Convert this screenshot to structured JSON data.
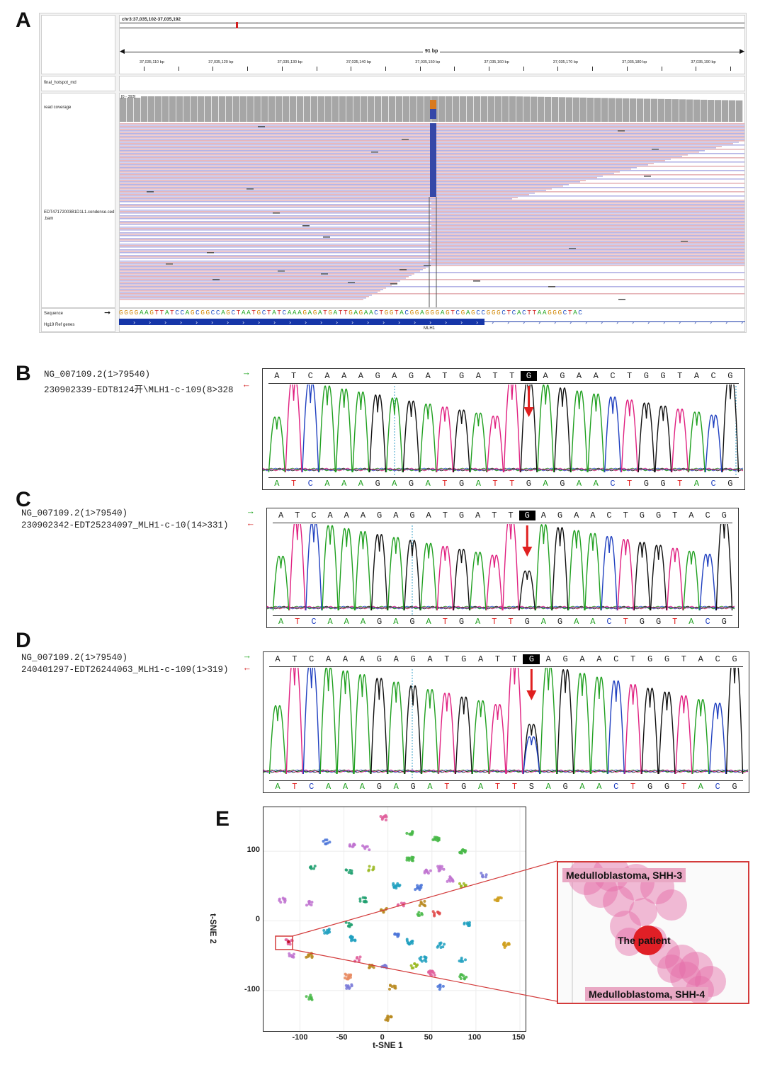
{
  "panels": {
    "a": {
      "letter": "A"
    },
    "b": {
      "letter": "B"
    },
    "c": {
      "letter": "C"
    },
    "d": {
      "letter": "D"
    },
    "e": {
      "letter": "E"
    }
  },
  "igv": {
    "locus": "chr3:37,035,102-37,035,192",
    "span": "91 bp",
    "ruler_ticks": [
      "37,035,110 bp",
      "37,035,120 bp",
      "37,035,130 bp",
      "37,035,140 bp",
      "37,035,150 bp",
      "37,035,160 bp",
      "37,035,170 bp",
      "37,035,180 bp",
      "37,035,190 bp"
    ],
    "tracks": {
      "hotspot": "final_hotspot_md",
      "coverage": "read coverage",
      "coverage_range": "[0 - 393]",
      "bam_line1": "EDT47172003B1D1L1.condense.ced",
      "bam_line2": ".bam",
      "sequence": "Sequence",
      "refgenes": "Hg19 Ref genes",
      "gene": "MLH1"
    },
    "reference_sequence": "GGGGAAGTTATCCAGCGGCCAGCTAATGCTATCAAAGAGATGATTGAGAACTGGTACGGAGGGAGTCGAGCCGGGCTCACTTAAGGGCTAC",
    "colors": {
      "A": "#1aa31a",
      "C": "#2553c4",
      "G": "#d28a0c",
      "T": "#d12222",
      "coverage": "#a6a6a6",
      "read_fwd": "#e6b4b8",
      "read_rev": "#b4b4e6",
      "variant_blue": "#3548a8",
      "variant_orange": "#d97a1f"
    }
  },
  "sanger": [
    {
      "ref_label": "NG_007109.2(1>79540)",
      "sample_label": "230902339-EDT8124开\\MLH1-c-109(8>328",
      "top_seq": [
        "A",
        "T",
        "C",
        "A",
        "A",
        "A",
        "G",
        "A",
        "G",
        "A",
        "T",
        "G",
        "A",
        "T",
        "T",
        "G",
        "A",
        "G",
        "A",
        "A",
        "C",
        "T",
        "G",
        "G",
        "T",
        "A",
        "C",
        "G"
      ],
      "bottom_seq": [
        "A",
        "T",
        "C",
        "A",
        "A",
        "A",
        "G",
        "A",
        "G",
        "A",
        "T",
        "G",
        "A",
        "T",
        "T",
        "G",
        "A",
        "G",
        "A",
        "A",
        "C",
        "T",
        "G",
        "G",
        "T",
        "A",
        "C",
        "G"
      ],
      "highlight_index": 15
    },
    {
      "ref_label": "NG_007109.2(1>79540)",
      "sample_label": "230902342-EDT25234097_MLH1-c-10(14>331)",
      "top_seq": [
        "A",
        "T",
        "C",
        "A",
        "A",
        "A",
        "G",
        "A",
        "G",
        "A",
        "T",
        "G",
        "A",
        "T",
        "T",
        "G",
        "A",
        "G",
        "A",
        "A",
        "C",
        "T",
        "G",
        "G",
        "T",
        "A",
        "C",
        "G"
      ],
      "bottom_seq": [
        "A",
        "T",
        "C",
        "A",
        "A",
        "A",
        "G",
        "A",
        "G",
        "A",
        "T",
        "G",
        "A",
        "T",
        "T",
        "G",
        "A",
        "G",
        "A",
        "A",
        "C",
        "T",
        "G",
        "G",
        "T",
        "A",
        "C",
        "G"
      ],
      "highlight_index": 15
    },
    {
      "ref_label": "NG_007109.2(1>79540)",
      "sample_label": "240401297-EDT26244063_MLH1-c-109(1>319)",
      "top_seq": [
        "A",
        "T",
        "C",
        "A",
        "A",
        "A",
        "G",
        "A",
        "G",
        "A",
        "T",
        "G",
        "A",
        "T",
        "T",
        "G",
        "A",
        "G",
        "A",
        "A",
        "C",
        "T",
        "G",
        "G",
        "T",
        "A",
        "C",
        "G"
      ],
      "bottom_seq": [
        "A",
        "T",
        "C",
        "A",
        "A",
        "A",
        "G",
        "A",
        "G",
        "A",
        "T",
        "G",
        "A",
        "T",
        "T",
        "S",
        "A",
        "G",
        "A",
        "A",
        "C",
        "T",
        "G",
        "G",
        "T",
        "A",
        "C",
        "G"
      ],
      "highlight_index": 15
    }
  ],
  "chart_data": {
    "type": "scatter",
    "title": "",
    "xlabel": "t-SNE 1",
    "ylabel": "t-SNE 2",
    "xlim": [
      -135,
      150
    ],
    "ylim": [
      -150,
      155
    ],
    "xticks": [
      "-100",
      "-50",
      "0",
      "50",
      "100",
      "150"
    ],
    "yticks": [
      "100",
      "0",
      "-100"
    ],
    "clusters": [
      {
        "x": -5,
        "y": 148,
        "color": "#e0609c"
      },
      {
        "x": 25,
        "y": 125,
        "color": "#48b948"
      },
      {
        "x": 55,
        "y": 118,
        "color": "#48b948"
      },
      {
        "x": -70,
        "y": 113,
        "color": "#4a74d8"
      },
      {
        "x": -40,
        "y": 110,
        "color": "#c072d0"
      },
      {
        "x": -25,
        "y": 105,
        "color": "#c072d0"
      },
      {
        "x": 25,
        "y": 88,
        "color": "#48b948"
      },
      {
        "x": 85,
        "y": 100,
        "color": "#48b948"
      },
      {
        "x": -85,
        "y": 78,
        "color": "#20a070"
      },
      {
        "x": -45,
        "y": 70,
        "color": "#20a070"
      },
      {
        "x": -20,
        "y": 75,
        "color": "#9ab820"
      },
      {
        "x": 45,
        "y": 70,
        "color": "#c072d0"
      },
      {
        "x": 60,
        "y": 75,
        "color": "#c072d0"
      },
      {
        "x": 70,
        "y": 60,
        "color": "#c072d0"
      },
      {
        "x": 110,
        "y": 65,
        "color": "#7a7ad8"
      },
      {
        "x": 10,
        "y": 50,
        "color": "#20a0c0"
      },
      {
        "x": 35,
        "y": 48,
        "color": "#4a74d8"
      },
      {
        "x": 85,
        "y": 50,
        "color": "#9ab820"
      },
      {
        "x": -120,
        "y": 30,
        "color": "#c072d0"
      },
      {
        "x": -90,
        "y": 25,
        "color": "#c072d0"
      },
      {
        "x": -28,
        "y": 30,
        "color": "#20a070"
      },
      {
        "x": 15,
        "y": 25,
        "color": "#e0609c"
      },
      {
        "x": 40,
        "y": 25,
        "color": "#b88a20"
      },
      {
        "x": 55,
        "y": 10,
        "color": "#e04a4a"
      },
      {
        "x": 35,
        "y": 10,
        "color": "#48b948"
      },
      {
        "x": 125,
        "y": 30,
        "color": "#d0a020"
      },
      {
        "x": -5,
        "y": 15,
        "color": "#b88a20"
      },
      {
        "x": -45,
        "y": -5,
        "color": "#20a070"
      },
      {
        "x": 90,
        "y": -5,
        "color": "#20a0c0"
      },
      {
        "x": -70,
        "y": -15,
        "color": "#20a0c0"
      },
      {
        "x": -40,
        "y": -25,
        "color": "#20a0c0"
      },
      {
        "x": 10,
        "y": -20,
        "color": "#4a74d8"
      },
      {
        "x": 25,
        "y": -30,
        "color": "#20a0c0"
      },
      {
        "x": 60,
        "y": -35,
        "color": "#20a0c0"
      },
      {
        "x": 135,
        "y": -35,
        "color": "#d0a020"
      },
      {
        "x": -112,
        "y": -30,
        "color": "#e0609c"
      },
      {
        "x": -110,
        "y": -50,
        "color": "#c072d0"
      },
      {
        "x": -90,
        "y": -50,
        "color": "#b88a20"
      },
      {
        "x": 40,
        "y": -55,
        "color": "#20a0c0"
      },
      {
        "x": 85,
        "y": -55,
        "color": "#20a0c0"
      },
      {
        "x": -35,
        "y": -55,
        "color": "#e0609c"
      },
      {
        "x": -20,
        "y": -65,
        "color": "#b88a20"
      },
      {
        "x": -5,
        "y": -65,
        "color": "#7a7ad8"
      },
      {
        "x": 30,
        "y": -65,
        "color": "#9ab820"
      },
      {
        "x": 50,
        "y": -75,
        "color": "#e0609c"
      },
      {
        "x": 85,
        "y": -80,
        "color": "#48b948"
      },
      {
        "x": -45,
        "y": -80,
        "color": "#e88a60"
      },
      {
        "x": -45,
        "y": -95,
        "color": "#7a7ad8"
      },
      {
        "x": 5,
        "y": -95,
        "color": "#b88a20"
      },
      {
        "x": 60,
        "y": -95,
        "color": "#4a74d8"
      },
      {
        "x": -90,
        "y": -110,
        "color": "#48b948"
      },
      {
        "x": 0,
        "y": -140,
        "color": "#b88a20"
      }
    ],
    "annotations": {
      "upper": "Medulloblastoma, SHH-3",
      "patient": "The patient",
      "lower": "Medulloblastoma, SHH-4"
    },
    "patient_point": {
      "x": -113,
      "y": -30
    }
  }
}
